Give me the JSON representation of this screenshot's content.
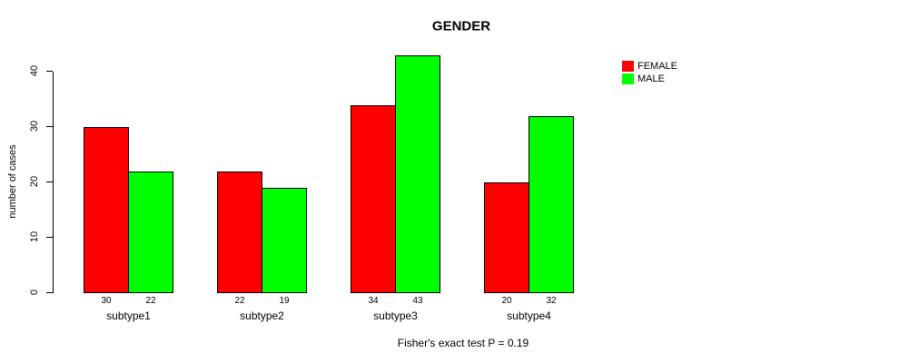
{
  "chart_data": {
    "type": "bar",
    "title": "GENDER",
    "categories": [
      "subtype1",
      "subtype2",
      "subtype3",
      "subtype4"
    ],
    "series": [
      {
        "name": "FEMALE",
        "color": "#ff0000",
        "values": [
          30,
          22,
          34,
          20
        ]
      },
      {
        "name": "MALE",
        "color": "#00ff00",
        "values": [
          22,
          19,
          43,
          32
        ]
      }
    ],
    "bar_value_labels_shown": true,
    "xlabel": "",
    "ylabel": "number of cases",
    "ylim": [
      0,
      40
    ],
    "yticks": [
      0,
      10,
      20,
      30,
      40
    ],
    "grid": false,
    "legend_position": "top-right",
    "bar_border_color": "#000000",
    "annotation": "Fisher's exact test P = 0.19"
  },
  "legend": {
    "items": [
      {
        "label": "FEMALE",
        "color": "#ff0000"
      },
      {
        "label": "MALE",
        "color": "#00ff00"
      }
    ]
  },
  "footer_note": "Fisher's exact test P = 0.19"
}
